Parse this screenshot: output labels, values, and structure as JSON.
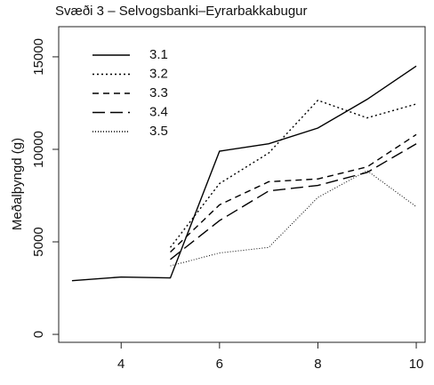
{
  "chart_data": {
    "type": "line",
    "title": "Svæði 3 – Selvogsbanki–Eyrarbakkabugur",
    "y_label": "Meðalþyngd (g)",
    "x": [
      3,
      4,
      5,
      6,
      7,
      8,
      9,
      10
    ],
    "series": [
      {
        "name": "3.1",
        "color": "#000000",
        "dash": "solid",
        "values": [
          2900,
          3100,
          3050,
          9900,
          10300,
          11150,
          12700,
          14500
        ]
      },
      {
        "name": "3.2",
        "color": "#000000",
        "dash": "dotted",
        "values": [
          null,
          null,
          4700,
          8150,
          9800,
          12650,
          11700,
          12450
        ]
      },
      {
        "name": "3.3",
        "color": "#000000",
        "dash": "dashed",
        "values": [
          null,
          null,
          4450,
          7000,
          8250,
          8400,
          9050,
          10800
        ]
      },
      {
        "name": "3.4",
        "color": "#000000",
        "dash": "longdash",
        "values": [
          null,
          null,
          4050,
          6150,
          7750,
          8050,
          8750,
          10300
        ]
      },
      {
        "name": "3.5",
        "color": "#000000",
        "dash": "finedotted",
        "values": [
          null,
          null,
          3700,
          4400,
          4700,
          7400,
          8850,
          6900
        ]
      }
    ],
    "xlim": [
      2.73,
      10.18
    ],
    "ylim": [
      -430,
      16630
    ],
    "xticks": [
      4,
      6,
      8,
      10
    ],
    "yticks": [
      0,
      5000,
      10000,
      15000
    ],
    "legend": "top-left"
  }
}
